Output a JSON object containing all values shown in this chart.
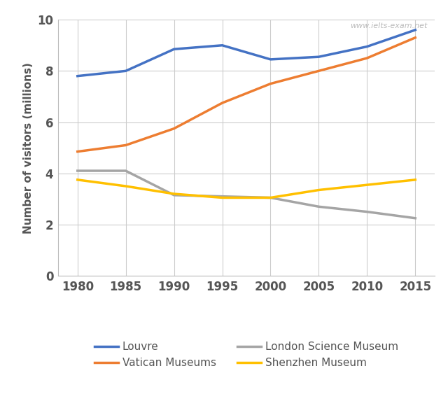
{
  "years": [
    1980,
    1985,
    1990,
    1995,
    2000,
    2005,
    2010,
    2015
  ],
  "louvre": [
    7.8,
    8.0,
    8.85,
    9.0,
    8.45,
    8.55,
    8.95,
    9.6
  ],
  "vatican": [
    4.85,
    5.1,
    5.75,
    6.75,
    7.5,
    8.0,
    8.5,
    9.3
  ],
  "london_science": [
    4.1,
    4.1,
    3.15,
    3.1,
    3.05,
    2.7,
    2.5,
    2.25
  ],
  "shenzhen": [
    3.75,
    3.5,
    3.2,
    3.05,
    3.05,
    3.35,
    3.55,
    3.75
  ],
  "louvre_color": "#4472C4",
  "vatican_color": "#ED7D31",
  "london_science_color": "#A5A5A5",
  "shenzhen_color": "#FFC000",
  "ylabel": "Number of visitors (millions)",
  "ylim": [
    0,
    10
  ],
  "yticks": [
    0,
    2,
    4,
    6,
    8,
    10
  ],
  "xlim": [
    1978,
    2017
  ],
  "xticks": [
    1980,
    1985,
    1990,
    1995,
    2000,
    2005,
    2010,
    2015
  ],
  "watermark": "www.ielts-exam.net",
  "legend_labels": [
    "Louvre",
    "Vatican Museums",
    "London Science Museum",
    "Shenzhen Museum"
  ],
  "line_width": 2.5,
  "tick_fontsize": 12,
  "ylabel_fontsize": 11,
  "legend_fontsize": 11
}
